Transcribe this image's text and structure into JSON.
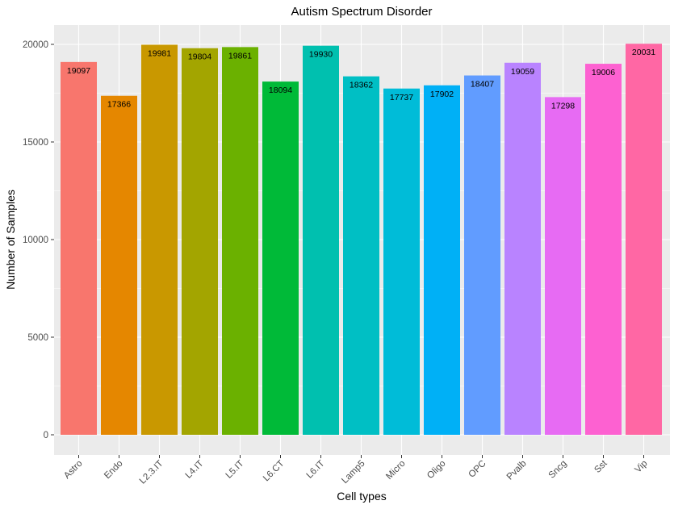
{
  "chart_data": {
    "type": "bar",
    "title": "Autism Spectrum Disorder",
    "xlabel": "Cell types",
    "ylabel": "Number of Samples",
    "categories": [
      "Astro",
      "Endo",
      "L2.3.IT",
      "L4.IT",
      "L5.IT",
      "L6.CT",
      "L6.IT",
      "Lamp5",
      "Micro",
      "Oligo",
      "OPC",
      "Pvalb",
      "Sncg",
      "Sst",
      "Vip"
    ],
    "values": [
      19097,
      17366,
      19981,
      19804,
      19861,
      18094,
      19930,
      18362,
      17737,
      17902,
      18407,
      19059,
      17298,
      19006,
      20031
    ],
    "data_labels": [
      "19097",
      "17366",
      "19981",
      "19804",
      "19861",
      "18094",
      "19930",
      "18362",
      "17737",
      "17902",
      "18407",
      "19059",
      "17298",
      "19006",
      "20031"
    ],
    "colors": [
      "#F8766D",
      "#E58700",
      "#C99800",
      "#A3A500",
      "#6BB100",
      "#00BA38",
      "#00C0AF",
      "#00BFC4",
      "#00BCD8",
      "#00B0F6",
      "#619CFF",
      "#B983FF",
      "#E76BF3",
      "#FD61D1",
      "#FF67A4"
    ],
    "y_ticks": [
      0,
      5000,
      10000,
      15000,
      20000
    ],
    "y_tick_labels": [
      "0",
      "5000",
      "10000",
      "15000",
      "20000"
    ],
    "ylim": [
      0,
      21000
    ],
    "grid": true,
    "legend": "none",
    "panel_background": "#EBEBEB",
    "grid_color": "#FFFFFF"
  }
}
